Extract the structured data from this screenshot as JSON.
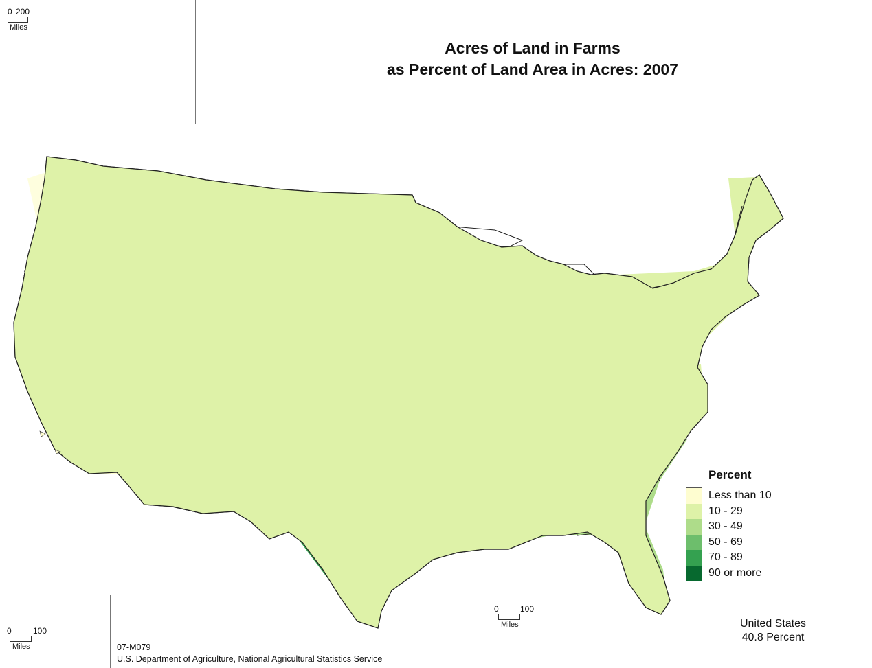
{
  "title": {
    "line1": "Acres of Land in Farms",
    "line2": "as Percent of Land Area in Acres:  2007"
  },
  "legend": {
    "title": "Percent",
    "items": [
      {
        "label": "Less than 10",
        "color": "#fefdd0"
      },
      {
        "label": "10 - 29",
        "color": "#def2a8"
      },
      {
        "label": "30 - 49",
        "color": "#aedc8a"
      },
      {
        "label": "50 - 69",
        "color": "#6dbe6c"
      },
      {
        "label": "70 - 89",
        "color": "#34a150"
      },
      {
        "label": "90 or more",
        "color": "#07692f"
      }
    ]
  },
  "scales": {
    "alaska": {
      "min": "0",
      "max": "200",
      "unit": "Miles"
    },
    "mainland": {
      "min": "0",
      "max": "100",
      "unit": "Miles"
    },
    "hawaii": {
      "min": "0",
      "max": "100",
      "unit": "Miles"
    }
  },
  "us_total": {
    "name": "United States",
    "value": "40.8 Percent"
  },
  "footer": {
    "map_id": "07-M079",
    "source": "U.S. Department of Agriculture, National Agricultural Statistics Service"
  },
  "colors": {
    "border": "#222222",
    "county_line": "#555555"
  }
}
